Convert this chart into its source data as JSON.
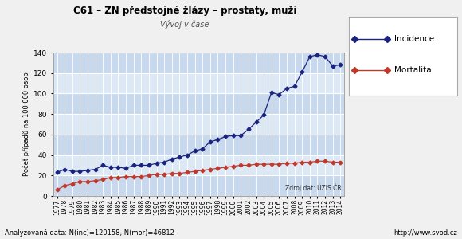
{
  "title": "C61 – ZN předstojné žlázy – prostaty, muži",
  "subtitle": "Vývoj v čase",
  "ylabel": "Počet případů na 100 000 osob",
  "footnote_left": "Analyzovaná data: N(inc)=120158, N(mor)=46812",
  "footnote_right": "http://www.svod.cz",
  "source_label": "Zdroj dat: ÚZIS ČR",
  "years": [
    1977,
    1978,
    1979,
    1980,
    1981,
    1982,
    1983,
    1984,
    1985,
    1986,
    1987,
    1988,
    1989,
    1990,
    1991,
    1992,
    1993,
    1994,
    1995,
    1996,
    1997,
    1998,
    1999,
    2000,
    2001,
    2002,
    2003,
    2004,
    2005,
    2006,
    2007,
    2008,
    2009,
    2010,
    2011,
    2012,
    2013,
    2014
  ],
  "incidence": [
    23,
    26,
    24,
    24,
    25,
    26,
    30,
    28,
    28,
    27,
    30,
    30,
    30,
    32,
    33,
    36,
    38,
    40,
    44,
    46,
    53,
    55,
    58,
    59,
    59,
    65,
    72,
    79,
    101,
    99,
    105,
    107,
    121,
    136,
    138,
    136,
    127,
    128
  ],
  "mortalita": [
    6,
    10,
    12,
    14,
    14,
    15,
    16,
    18,
    18,
    19,
    19,
    19,
    20,
    21,
    21,
    22,
    22,
    23,
    24,
    25,
    26,
    27,
    28,
    29,
    30,
    30,
    31,
    31,
    31,
    31,
    32,
    32,
    33,
    33,
    34,
    34,
    33,
    33
  ],
  "incidence_color": "#1a237e",
  "mortalita_color": "#c0392b",
  "bg_stripe_light": "#dde8f5",
  "bg_stripe_dark": "#c8d9ee",
  "grid_color": "#ffffff",
  "fig_bg": "#f0f0f0",
  "ylim": [
    0,
    140
  ],
  "yticks": [
    0,
    20,
    40,
    60,
    80,
    100,
    120,
    140
  ]
}
